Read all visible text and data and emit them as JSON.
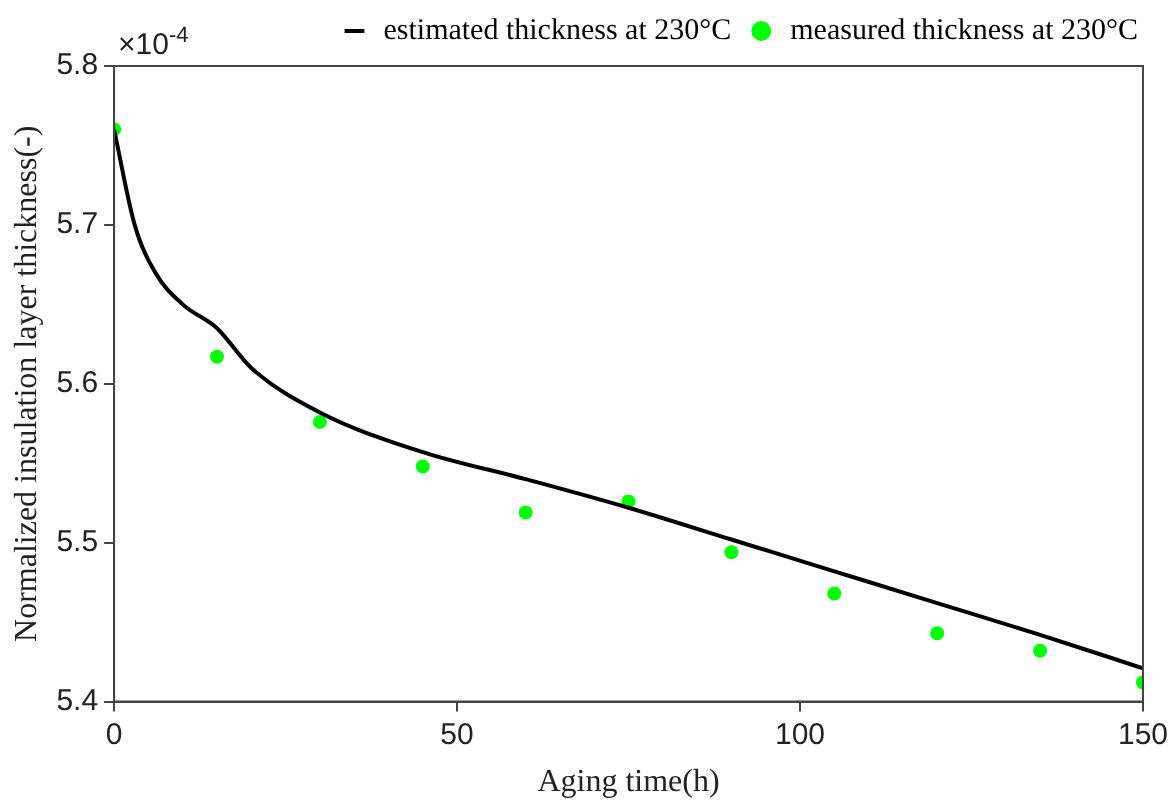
{
  "chart_data": {
    "type": "line",
    "xlabel": "Aging time(h)",
    "ylabel": "Normalized insulation layer thickness(-)",
    "annotations": [
      "×10$^{-4}$"
    ],
    "xlim": [
      0,
      150
    ],
    "xticks": [
      0,
      50,
      100,
      150
    ],
    "ylim": [
      5.4,
      5.8
    ],
    "yticks": [
      5.4,
      5.5,
      5.6,
      5.7,
      5.8
    ],
    "grid": false,
    "legend": "top right",
    "series": [
      {
        "name": "estimated thickness at 230°C",
        "color": "#000000",
        "marker": "none",
        "line_style": "solid",
        "x": [
          0,
          3,
          6,
          10,
          15,
          20,
          30,
          45,
          60,
          75,
          90,
          105,
          120,
          135,
          150
        ],
        "values": [
          5.76,
          5.7,
          5.67,
          5.65,
          5.635,
          5.61,
          5.582,
          5.557,
          5.54,
          5.522,
          5.502,
          5.482,
          5.462,
          5.442,
          5.421
        ]
      },
      {
        "name": "measured thickness at 230°C",
        "type": "scatter",
        "color": "#00ff00",
        "marker": "circle",
        "x": [
          0,
          15,
          30,
          45,
          60,
          75,
          90,
          105,
          120,
          135,
          150
        ],
        "values": [
          5.76,
          5.617,
          5.576,
          5.548,
          5.519,
          5.526,
          5.494,
          5.468,
          5.443,
          5.432,
          5.412
        ]
      }
    ]
  }
}
